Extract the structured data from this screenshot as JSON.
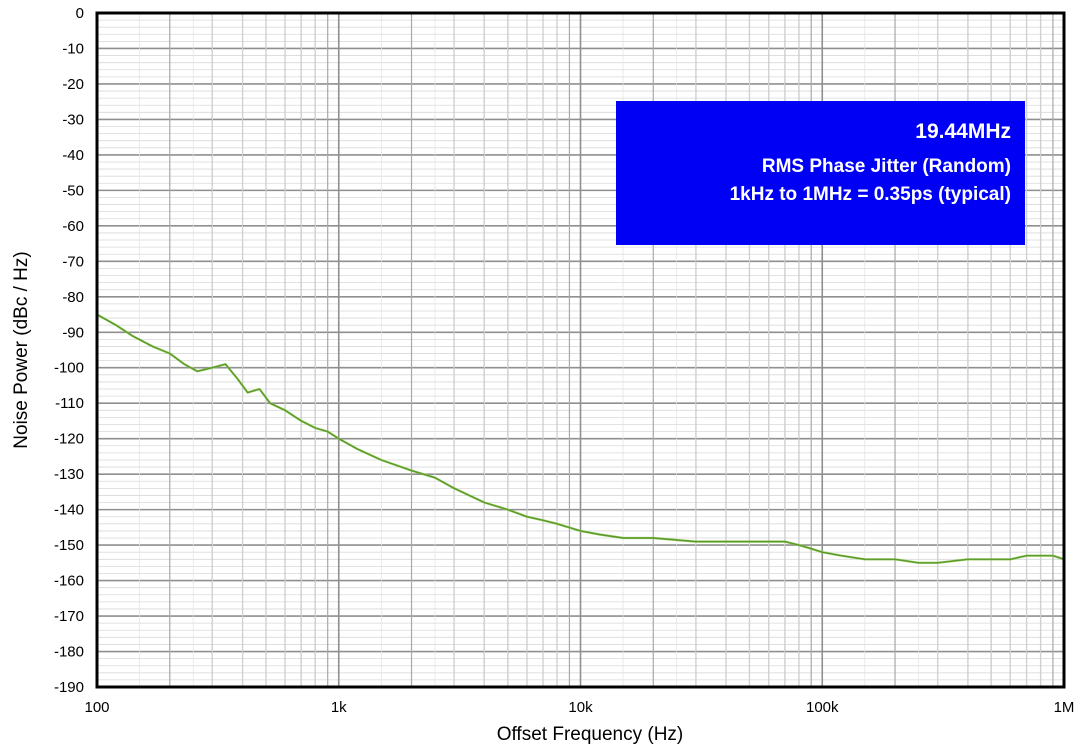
{
  "chart_data": {
    "type": "line",
    "title": "",
    "xlabel": "Offset Frequency (Hz)",
    "ylabel": "Noise Power (dBc / Hz)",
    "x_scale": "log",
    "xlim": [
      100,
      1000000
    ],
    "ylim": [
      -190,
      0
    ],
    "grid": true,
    "x_tick_values": [
      100,
      1000,
      10000,
      100000,
      1000000
    ],
    "x_tick_labels": [
      "100",
      "1k",
      "10k",
      "100k",
      "1M"
    ],
    "y_tick_values": [
      0,
      -10,
      -20,
      -30,
      -40,
      -50,
      -60,
      -70,
      -80,
      -90,
      -100,
      -110,
      -120,
      -130,
      -140,
      -150,
      -160,
      -170,
      -180,
      -190
    ],
    "y_tick_labels": [
      "0",
      "-10",
      "-20",
      "-30",
      "-40",
      "-50",
      "-60",
      "-70",
      "-80",
      "-90",
      "-100",
      "-110",
      "-120",
      "-130",
      "-140",
      "-150",
      "-160",
      "-170",
      "-180",
      "-190"
    ],
    "series_color": "#7fc241",
    "series": [
      {
        "x": [
          100,
          120,
          140,
          170,
          200,
          230,
          260,
          300,
          340,
          380,
          420,
          470,
          520,
          600,
          700,
          800,
          900,
          1000,
          1200,
          1500,
          2000,
          2500,
          3000,
          4000,
          5000,
          6000,
          7000,
          8000,
          10000,
          12000,
          15000,
          20000,
          30000,
          40000,
          50000,
          60000,
          70000,
          80000,
          90000,
          100000,
          120000,
          150000,
          200000,
          250000,
          300000,
          400000,
          500000,
          600000,
          700000,
          800000,
          900000,
          1000000
        ],
        "y": [
          -85,
          -88,
          -91,
          -94,
          -96,
          -99,
          -101,
          -100,
          -99,
          -103,
          -107,
          -106,
          -110,
          -112,
          -115,
          -117,
          -118,
          -120,
          -123,
          -126,
          -129,
          -131,
          -134,
          -138,
          -140,
          -142,
          -143,
          -144,
          -146,
          -147,
          -148,
          -148,
          -149,
          -149,
          -149,
          -149,
          -149,
          -150,
          -151,
          -152,
          -153,
          -154,
          -154,
          -155,
          -155,
          -154,
          -154,
          -154,
          -153,
          -153,
          -153,
          -154
        ]
      }
    ]
  },
  "annotation": {
    "bg_color": "#0000f5",
    "title": "19.44MHz",
    "line1": "RMS Phase Jitter (Random)",
    "line2": "1kHz to 1MHz = 0.35ps (typical)"
  }
}
